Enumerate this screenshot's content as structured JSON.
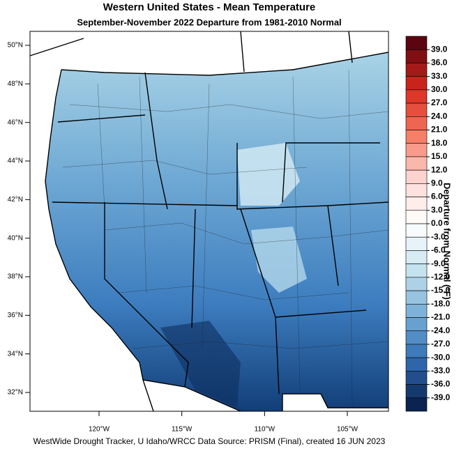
{
  "title": "Western United States - Mean Temperature",
  "subtitle": "September-November 2022  Departure from 1981-2010 Normal",
  "axes": {
    "lat_ticks": [
      {
        "value": 50,
        "label": "50°N"
      },
      {
        "value": 48,
        "label": "48°N"
      },
      {
        "value": 46,
        "label": "46°N"
      },
      {
        "value": 44,
        "label": "44°N"
      },
      {
        "value": 42,
        "label": "42°N"
      },
      {
        "value": 40,
        "label": "40°N"
      },
      {
        "value": 38,
        "label": "38°N"
      },
      {
        "value": 36,
        "label": "36°N"
      },
      {
        "value": 34,
        "label": "34°N"
      },
      {
        "value": 32,
        "label": "32°N"
      }
    ],
    "lon_ticks": [
      {
        "value": -120,
        "label": "120°W"
      },
      {
        "value": -115,
        "label": "115°W"
      },
      {
        "value": -110,
        "label": "110°W"
      },
      {
        "value": -105,
        "label": "105°W"
      }
    ]
  },
  "colorbar": {
    "label": "Departure from Normal (°F)",
    "ticks": [
      {
        "value": 39,
        "label": "39.0"
      },
      {
        "value": 36,
        "label": "36.0"
      },
      {
        "value": 33,
        "label": "33.0"
      },
      {
        "value": 30,
        "label": "30.0"
      },
      {
        "value": 27,
        "label": "27.0"
      },
      {
        "value": 24,
        "label": "24.0"
      },
      {
        "value": 21,
        "label": "21.0"
      },
      {
        "value": 18,
        "label": "18.0"
      },
      {
        "value": 15,
        "label": "15.0"
      },
      {
        "value": 12,
        "label": "12.0"
      },
      {
        "value": 9,
        "label": "9.0"
      },
      {
        "value": 6,
        "label": "6.0"
      },
      {
        "value": 3,
        "label": "3.0"
      },
      {
        "value": 0,
        "label": "0.0"
      },
      {
        "value": -3,
        "label": "-3.0"
      },
      {
        "value": -6,
        "label": "-6.0"
      },
      {
        "value": -9,
        "label": "-9.0"
      },
      {
        "value": -12,
        "label": "-12.0"
      },
      {
        "value": -15,
        "label": "-15.0"
      },
      {
        "value": -18,
        "label": "-18.0"
      },
      {
        "value": -21,
        "label": "-21.0"
      },
      {
        "value": -24,
        "label": "-24.0"
      },
      {
        "value": -27,
        "label": "-27.0"
      },
      {
        "value": -30,
        "label": "-30.0"
      },
      {
        "value": -33,
        "label": "-33.0"
      },
      {
        "value": -36,
        "label": "-36.0"
      },
      {
        "value": -39,
        "label": "-39.0"
      }
    ]
  },
  "credit": "WestWide Drought Tracker, U Idaho/WRCC Data Source: PRISM (Final), created 16 JUN 2023"
}
